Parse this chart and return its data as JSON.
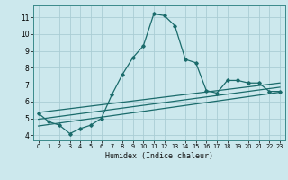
{
  "xlabel": "Humidex (Indice chaleur)",
  "xlim": [
    -0.5,
    23.5
  ],
  "ylim": [
    3.7,
    11.7
  ],
  "yticks": [
    4,
    5,
    6,
    7,
    8,
    9,
    10,
    11
  ],
  "xticks": [
    0,
    1,
    2,
    3,
    4,
    5,
    6,
    7,
    8,
    9,
    10,
    11,
    12,
    13,
    14,
    15,
    16,
    17,
    18,
    19,
    20,
    21,
    22,
    23
  ],
  "background_color": "#cce8ed",
  "grid_color": "#aacdd4",
  "line_color": "#1a6b6b",
  "line1_x": [
    0,
    1,
    2,
    3,
    4,
    5,
    6,
    7,
    8,
    9,
    10,
    11,
    12,
    13,
    14,
    15,
    16,
    17,
    18,
    19,
    20,
    21,
    22,
    23
  ],
  "line1_y": [
    5.3,
    4.8,
    4.6,
    4.1,
    4.4,
    4.6,
    5.0,
    6.4,
    7.6,
    8.6,
    9.3,
    11.2,
    11.1,
    10.5,
    8.5,
    8.3,
    6.65,
    6.5,
    7.25,
    7.25,
    7.1,
    7.1,
    6.6,
    6.6
  ],
  "line2_x": [
    0,
    23
  ],
  "line2_y": [
    4.55,
    6.55
  ],
  "line3_x": [
    0,
    23
  ],
  "line3_y": [
    4.95,
    6.85
  ],
  "line4_x": [
    0,
    23
  ],
  "line4_y": [
    5.35,
    7.1
  ]
}
